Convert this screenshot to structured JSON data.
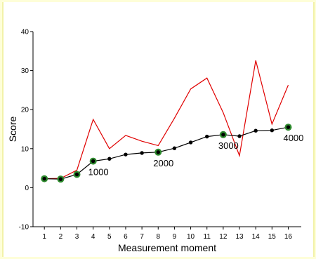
{
  "chart_data": {
    "type": "line",
    "xlabel": "Measurement moment",
    "ylabel": "Score",
    "xlim": [
      0.3,
      16.8
    ],
    "ylim": [
      -10,
      40
    ],
    "x_ticks": [
      1,
      2,
      3,
      4,
      5,
      6,
      7,
      8,
      9,
      10,
      11,
      12,
      13,
      14,
      15,
      16
    ],
    "y_ticks": [
      -10,
      0,
      10,
      20,
      30,
      40
    ],
    "grid": false,
    "series": [
      {
        "color": "#e00000",
        "marker": "none",
        "x": [
          1,
          2,
          3,
          4,
          5,
          6,
          7,
          8,
          9,
          10,
          11,
          12,
          13,
          14,
          15,
          16
        ],
        "y": [
          2.3,
          2.4,
          4.5,
          17.5,
          10.0,
          13.4,
          11.9,
          10.8,
          17.8,
          25.3,
          28.1,
          19.2,
          8.2,
          32.6,
          16.3,
          26.3
        ]
      },
      {
        "color": "#000000",
        "marker": "dot",
        "x": [
          1,
          2,
          3,
          4,
          5,
          6,
          7,
          8,
          9,
          10,
          11,
          12,
          13,
          14,
          15,
          16
        ],
        "y": [
          2.3,
          2.2,
          3.4,
          6.8,
          7.4,
          8.5,
          8.9,
          9.1,
          10.1,
          11.6,
          13.1,
          13.6,
          13.2,
          14.6,
          14.7,
          15.5
        ]
      }
    ],
    "highlighted_points": {
      "color": "#2e8b2e",
      "x": [
        1,
        2,
        3,
        4,
        8,
        12,
        16
      ]
    },
    "annotations": [
      {
        "text": "1000",
        "x": 4
      },
      {
        "text": "2000",
        "x": 8
      },
      {
        "text": "3000",
        "x": 12
      },
      {
        "text": "4000",
        "x": 16
      }
    ]
  }
}
